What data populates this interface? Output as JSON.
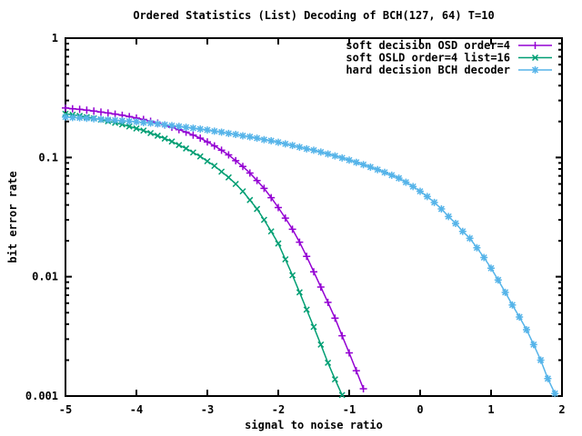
{
  "chart_data": {
    "type": "line",
    "title": "Ordered Statistics (List) Decoding of BCH(127, 64) T=10",
    "xlabel": "signal to noise ratio",
    "ylabel": "bit error rate",
    "x_range": [
      -5,
      2
    ],
    "y_range": [
      0.001,
      1
    ],
    "y_scale": "log",
    "grid": false,
    "legend_position": "top-right-inside",
    "background_color": "#ffffff",
    "axis_color": "#000000",
    "x_ticks": [
      "-5",
      "-4",
      "-3",
      "-2",
      "-1",
      "0",
      "1",
      "2"
    ],
    "y_ticks": [
      "1",
      "0.1",
      "0.01",
      "0.001"
    ],
    "series": [
      {
        "name": "soft decision OSD order=4",
        "color": "#9400d3",
        "marker": "plus",
        "points": [
          [
            -5.0,
            0.26
          ],
          [
            -4.9,
            0.256
          ],
          [
            -4.8,
            0.253
          ],
          [
            -4.7,
            0.249
          ],
          [
            -4.6,
            0.245
          ],
          [
            -4.5,
            0.24
          ],
          [
            -4.4,
            0.236
          ],
          [
            -4.3,
            0.231
          ],
          [
            -4.2,
            0.226
          ],
          [
            -4.1,
            0.22
          ],
          [
            -4.0,
            0.214
          ],
          [
            -3.9,
            0.208
          ],
          [
            -3.8,
            0.201
          ],
          [
            -3.7,
            0.194
          ],
          [
            -3.6,
            0.187
          ],
          [
            -3.5,
            0.179
          ],
          [
            -3.4,
            0.171
          ],
          [
            -3.3,
            0.163
          ],
          [
            -3.2,
            0.154
          ],
          [
            -3.1,
            0.145
          ],
          [
            -3.0,
            0.135
          ],
          [
            -2.9,
            0.125
          ],
          [
            -2.8,
            0.115
          ],
          [
            -2.7,
            0.105
          ],
          [
            -2.6,
            0.094
          ],
          [
            -2.5,
            0.084
          ],
          [
            -2.4,
            0.074
          ],
          [
            -2.3,
            0.064
          ],
          [
            -2.2,
            0.055
          ],
          [
            -2.1,
            0.046
          ],
          [
            -2.0,
            0.038
          ],
          [
            -1.9,
            0.031
          ],
          [
            -1.8,
            0.025
          ],
          [
            -1.7,
            0.0195
          ],
          [
            -1.6,
            0.0148
          ],
          [
            -1.5,
            0.011
          ],
          [
            -1.4,
            0.0082
          ],
          [
            -1.3,
            0.0061
          ],
          [
            -1.2,
            0.0045
          ],
          [
            -1.1,
            0.0032
          ],
          [
            -1.0,
            0.0023
          ],
          [
            -0.9,
            0.00163
          ],
          [
            -0.8,
            0.00115
          ]
        ]
      },
      {
        "name": "soft OSLD order=4 list=16",
        "color": "#009e73",
        "marker": "cross",
        "points": [
          [
            -5.0,
            0.232
          ],
          [
            -4.9,
            0.228
          ],
          [
            -4.8,
            0.223
          ],
          [
            -4.7,
            0.218
          ],
          [
            -4.6,
            0.213
          ],
          [
            -4.5,
            0.207
          ],
          [
            -4.4,
            0.201
          ],
          [
            -4.3,
            0.195
          ],
          [
            -4.2,
            0.189
          ],
          [
            -4.1,
            0.182
          ],
          [
            -4.0,
            0.175
          ],
          [
            -3.9,
            0.168
          ],
          [
            -3.8,
            0.16
          ],
          [
            -3.7,
            0.152
          ],
          [
            -3.6,
            0.144
          ],
          [
            -3.5,
            0.136
          ],
          [
            -3.4,
            0.127
          ],
          [
            -3.3,
            0.119
          ],
          [
            -3.2,
            0.11
          ],
          [
            -3.1,
            0.102
          ],
          [
            -3.0,
            0.093
          ],
          [
            -2.9,
            0.085
          ],
          [
            -2.8,
            0.076
          ],
          [
            -2.7,
            0.068
          ],
          [
            -2.6,
            0.06
          ],
          [
            -2.5,
            0.052
          ],
          [
            -2.4,
            0.044
          ],
          [
            -2.3,
            0.037
          ],
          [
            -2.2,
            0.03
          ],
          [
            -2.1,
            0.024
          ],
          [
            -2.0,
            0.019
          ],
          [
            -1.9,
            0.014
          ],
          [
            -1.8,
            0.0103
          ],
          [
            -1.7,
            0.0074
          ],
          [
            -1.6,
            0.0053
          ],
          [
            -1.5,
            0.0038
          ],
          [
            -1.4,
            0.0027
          ],
          [
            -1.3,
            0.0019
          ],
          [
            -1.2,
            0.00138
          ],
          [
            -1.1,
            0.00102
          ]
        ]
      },
      {
        "name": "hard decision BCH decoder",
        "color": "#56b4e9",
        "marker": "asterisk",
        "points": [
          [
            -5.0,
            0.218
          ],
          [
            -4.9,
            0.216
          ],
          [
            -4.8,
            0.215
          ],
          [
            -4.7,
            0.213
          ],
          [
            -4.6,
            0.211
          ],
          [
            -4.5,
            0.209
          ],
          [
            -4.4,
            0.207
          ],
          [
            -4.3,
            0.205
          ],
          [
            -4.2,
            0.203
          ],
          [
            -4.1,
            0.201
          ],
          [
            -4.0,
            0.199
          ],
          [
            -3.9,
            0.196
          ],
          [
            -3.8,
            0.194
          ],
          [
            -3.7,
            0.191
          ],
          [
            -3.6,
            0.188
          ],
          [
            -3.5,
            0.185
          ],
          [
            -3.4,
            0.182
          ],
          [
            -3.3,
            0.179
          ],
          [
            -3.2,
            0.176
          ],
          [
            -3.1,
            0.173
          ],
          [
            -3.0,
            0.17
          ],
          [
            -2.9,
            0.166
          ],
          [
            -2.8,
            0.163
          ],
          [
            -2.7,
            0.159
          ],
          [
            -2.6,
            0.156
          ],
          [
            -2.5,
            0.152
          ],
          [
            -2.4,
            0.149
          ],
          [
            -2.3,
            0.145
          ],
          [
            -2.2,
            0.141
          ],
          [
            -2.1,
            0.138
          ],
          [
            -2.0,
            0.134
          ],
          [
            -1.9,
            0.13
          ],
          [
            -1.8,
            0.126
          ],
          [
            -1.7,
            0.122
          ],
          [
            -1.6,
            0.118
          ],
          [
            -1.5,
            0.115
          ],
          [
            -1.4,
            0.111
          ],
          [
            -1.3,
            0.107
          ],
          [
            -1.2,
            0.103
          ],
          [
            -1.1,
            0.099
          ],
          [
            -1.0,
            0.095
          ],
          [
            -0.9,
            0.091
          ],
          [
            -0.8,
            0.087
          ],
          [
            -0.7,
            0.083
          ],
          [
            -0.6,
            0.079
          ],
          [
            -0.5,
            0.075
          ],
          [
            -0.4,
            0.071
          ],
          [
            -0.3,
            0.067
          ],
          [
            -0.2,
            0.062
          ],
          [
            -0.1,
            0.057
          ],
          [
            0.0,
            0.052
          ],
          [
            0.1,
            0.047
          ],
          [
            0.2,
            0.042
          ],
          [
            0.3,
            0.037
          ],
          [
            0.4,
            0.032
          ],
          [
            0.5,
            0.028
          ],
          [
            0.6,
            0.024
          ],
          [
            0.7,
            0.021
          ],
          [
            0.8,
            0.0175
          ],
          [
            0.9,
            0.0145
          ],
          [
            1.0,
            0.0118
          ],
          [
            1.1,
            0.0094
          ],
          [
            1.2,
            0.0074
          ],
          [
            1.3,
            0.0058
          ],
          [
            1.4,
            0.0046
          ],
          [
            1.5,
            0.0036
          ],
          [
            1.6,
            0.0027
          ],
          [
            1.7,
            0.002
          ],
          [
            1.8,
            0.0014
          ],
          [
            1.9,
            0.00105
          ]
        ]
      }
    ]
  }
}
